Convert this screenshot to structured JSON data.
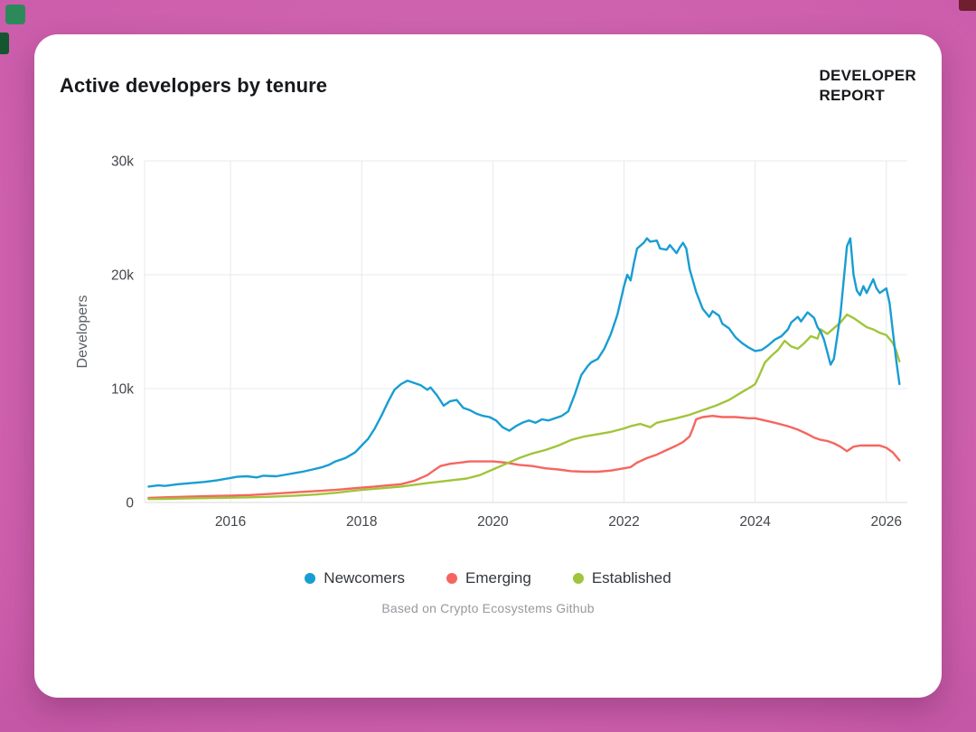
{
  "page": {
    "title": "Active developers by tenure",
    "brand": {
      "line1": "DEVELOPER",
      "line2": "REPORT"
    },
    "caption": "Based on Crypto Ecosystems Github",
    "background_color": "#cc5dac",
    "card_color": "#ffffff"
  },
  "chart_data": {
    "type": "line",
    "title": "Active developers by tenure",
    "xlabel": "",
    "ylabel": "Developers",
    "xlim": [
      2014.69,
      2026.32
    ],
    "ylim": [
      0,
      30000
    ],
    "x_ticks": [
      2016,
      2018,
      2020,
      2022,
      2024,
      2026
    ],
    "y_ticks": [
      0,
      10000,
      20000,
      30000
    ],
    "y_tick_labels": [
      "0",
      "10k",
      "20k",
      "30k"
    ],
    "grid": true,
    "legend_position": "bottom",
    "caption": "Based on Crypto Ecosystems Github",
    "series": [
      {
        "name": "Newcomers",
        "color": "#189dd3",
        "points": [
          [
            2014.75,
            1400
          ],
          [
            2014.9,
            1500
          ],
          [
            2015.0,
            1450
          ],
          [
            2015.2,
            1600
          ],
          [
            2015.4,
            1700
          ],
          [
            2015.6,
            1800
          ],
          [
            2015.8,
            1950
          ],
          [
            2016.0,
            2150
          ],
          [
            2016.1,
            2250
          ],
          [
            2016.25,
            2300
          ],
          [
            2016.4,
            2200
          ],
          [
            2016.5,
            2350
          ],
          [
            2016.7,
            2300
          ],
          [
            2016.9,
            2500
          ],
          [
            2017.0,
            2600
          ],
          [
            2017.1,
            2700
          ],
          [
            2017.25,
            2900
          ],
          [
            2017.4,
            3100
          ],
          [
            2017.5,
            3300
          ],
          [
            2017.6,
            3600
          ],
          [
            2017.75,
            3900
          ],
          [
            2017.9,
            4400
          ],
          [
            2018.0,
            5000
          ],
          [
            2018.1,
            5600
          ],
          [
            2018.2,
            6500
          ],
          [
            2018.3,
            7600
          ],
          [
            2018.4,
            8800
          ],
          [
            2018.5,
            9900
          ],
          [
            2018.6,
            10400
          ],
          [
            2018.7,
            10700
          ],
          [
            2018.8,
            10500
          ],
          [
            2018.9,
            10300
          ],
          [
            2019.0,
            9900
          ],
          [
            2019.05,
            10100
          ],
          [
            2019.15,
            9400
          ],
          [
            2019.25,
            8500
          ],
          [
            2019.35,
            8900
          ],
          [
            2019.45,
            9000
          ],
          [
            2019.55,
            8300
          ],
          [
            2019.65,
            8100
          ],
          [
            2019.75,
            7800
          ],
          [
            2019.85,
            7600
          ],
          [
            2019.95,
            7500
          ],
          [
            2020.05,
            7200
          ],
          [
            2020.15,
            6600
          ],
          [
            2020.25,
            6300
          ],
          [
            2020.35,
            6700
          ],
          [
            2020.45,
            7000
          ],
          [
            2020.55,
            7200
          ],
          [
            2020.65,
            7000
          ],
          [
            2020.75,
            7300
          ],
          [
            2020.85,
            7200
          ],
          [
            2020.95,
            7400
          ],
          [
            2021.05,
            7600
          ],
          [
            2021.15,
            8000
          ],
          [
            2021.25,
            9500
          ],
          [
            2021.35,
            11200
          ],
          [
            2021.45,
            12000
          ],
          [
            2021.5,
            12300
          ],
          [
            2021.6,
            12600
          ],
          [
            2021.7,
            13500
          ],
          [
            2021.8,
            14800
          ],
          [
            2021.9,
            16500
          ],
          [
            2022.0,
            19000
          ],
          [
            2022.05,
            20000
          ],
          [
            2022.1,
            19500
          ],
          [
            2022.15,
            21000
          ],
          [
            2022.2,
            22300
          ],
          [
            2022.3,
            22800
          ],
          [
            2022.35,
            23200
          ],
          [
            2022.4,
            22900
          ],
          [
            2022.5,
            23000
          ],
          [
            2022.55,
            22300
          ],
          [
            2022.65,
            22200
          ],
          [
            2022.7,
            22600
          ],
          [
            2022.8,
            21900
          ],
          [
            2022.85,
            22400
          ],
          [
            2022.9,
            22800
          ],
          [
            2022.95,
            22300
          ],
          [
            2023.0,
            20500
          ],
          [
            2023.05,
            19500
          ],
          [
            2023.1,
            18500
          ],
          [
            2023.2,
            17000
          ],
          [
            2023.3,
            16300
          ],
          [
            2023.35,
            16800
          ],
          [
            2023.45,
            16400
          ],
          [
            2023.5,
            15700
          ],
          [
            2023.6,
            15300
          ],
          [
            2023.7,
            14500
          ],
          [
            2023.8,
            14000
          ],
          [
            2023.9,
            13600
          ],
          [
            2024.0,
            13300
          ],
          [
            2024.1,
            13400
          ],
          [
            2024.2,
            13800
          ],
          [
            2024.3,
            14300
          ],
          [
            2024.4,
            14600
          ],
          [
            2024.5,
            15200
          ],
          [
            2024.55,
            15800
          ],
          [
            2024.65,
            16300
          ],
          [
            2024.7,
            15900
          ],
          [
            2024.8,
            16700
          ],
          [
            2024.9,
            16200
          ],
          [
            2024.95,
            15400
          ],
          [
            2025.0,
            15000
          ],
          [
            2025.05,
            14300
          ],
          [
            2025.1,
            13200
          ],
          [
            2025.15,
            12100
          ],
          [
            2025.2,
            12600
          ],
          [
            2025.25,
            14500
          ],
          [
            2025.3,
            16500
          ],
          [
            2025.35,
            19500
          ],
          [
            2025.4,
            22500
          ],
          [
            2025.45,
            23200
          ],
          [
            2025.5,
            20000
          ],
          [
            2025.55,
            18600
          ],
          [
            2025.6,
            18200
          ],
          [
            2025.65,
            19000
          ],
          [
            2025.7,
            18400
          ],
          [
            2025.8,
            19600
          ],
          [
            2025.85,
            18800
          ],
          [
            2025.9,
            18400
          ],
          [
            2026.0,
            18800
          ],
          [
            2026.05,
            17500
          ],
          [
            2026.1,
            15000
          ],
          [
            2026.15,
            12500
          ],
          [
            2026.2,
            10400
          ]
        ]
      },
      {
        "name": "Emerging",
        "color": "#f5665e",
        "points": [
          [
            2014.75,
            400
          ],
          [
            2015.0,
            450
          ],
          [
            2015.3,
            500
          ],
          [
            2015.6,
            550
          ],
          [
            2016.0,
            600
          ],
          [
            2016.3,
            650
          ],
          [
            2016.6,
            750
          ],
          [
            2017.0,
            900
          ],
          [
            2017.3,
            1000
          ],
          [
            2017.6,
            1100
          ],
          [
            2018.0,
            1300
          ],
          [
            2018.2,
            1400
          ],
          [
            2018.4,
            1500
          ],
          [
            2018.6,
            1600
          ],
          [
            2018.8,
            1900
          ],
          [
            2019.0,
            2400
          ],
          [
            2019.1,
            2800
          ],
          [
            2019.2,
            3200
          ],
          [
            2019.35,
            3400
          ],
          [
            2019.5,
            3500
          ],
          [
            2019.65,
            3600
          ],
          [
            2019.8,
            3600
          ],
          [
            2020.0,
            3600
          ],
          [
            2020.2,
            3500
          ],
          [
            2020.4,
            3300
          ],
          [
            2020.6,
            3200
          ],
          [
            2020.8,
            3000
          ],
          [
            2021.0,
            2900
          ],
          [
            2021.2,
            2750
          ],
          [
            2021.4,
            2700
          ],
          [
            2021.6,
            2700
          ],
          [
            2021.8,
            2800
          ],
          [
            2022.0,
            3000
          ],
          [
            2022.1,
            3100
          ],
          [
            2022.2,
            3500
          ],
          [
            2022.35,
            3900
          ],
          [
            2022.5,
            4200
          ],
          [
            2022.65,
            4600
          ],
          [
            2022.8,
            5000
          ],
          [
            2022.9,
            5300
          ],
          [
            2023.0,
            5800
          ],
          [
            2023.05,
            6500
          ],
          [
            2023.1,
            7300
          ],
          [
            2023.2,
            7500
          ],
          [
            2023.35,
            7600
          ],
          [
            2023.5,
            7500
          ],
          [
            2023.7,
            7500
          ],
          [
            2023.9,
            7400
          ],
          [
            2024.0,
            7400
          ],
          [
            2024.15,
            7200
          ],
          [
            2024.3,
            7000
          ],
          [
            2024.5,
            6700
          ],
          [
            2024.65,
            6400
          ],
          [
            2024.8,
            6000
          ],
          [
            2024.9,
            5700
          ],
          [
            2025.0,
            5500
          ],
          [
            2025.1,
            5400
          ],
          [
            2025.2,
            5200
          ],
          [
            2025.3,
            4900
          ],
          [
            2025.4,
            4500
          ],
          [
            2025.5,
            4900
          ],
          [
            2025.6,
            5000
          ],
          [
            2025.75,
            5000
          ],
          [
            2025.9,
            5000
          ],
          [
            2026.0,
            4800
          ],
          [
            2026.1,
            4400
          ],
          [
            2026.2,
            3700
          ]
        ]
      },
      {
        "name": "Established",
        "color": "#a1c53a",
        "points": [
          [
            2014.75,
            300
          ],
          [
            2015.0,
            320
          ],
          [
            2015.3,
            350
          ],
          [
            2015.6,
            380
          ],
          [
            2016.0,
            420
          ],
          [
            2016.3,
            450
          ],
          [
            2016.6,
            500
          ],
          [
            2017.0,
            600
          ],
          [
            2017.3,
            700
          ],
          [
            2017.6,
            850
          ],
          [
            2018.0,
            1100
          ],
          [
            2018.3,
            1250
          ],
          [
            2018.6,
            1400
          ],
          [
            2019.0,
            1700
          ],
          [
            2019.3,
            1900
          ],
          [
            2019.6,
            2100
          ],
          [
            2019.8,
            2400
          ],
          [
            2020.0,
            2900
          ],
          [
            2020.2,
            3400
          ],
          [
            2020.4,
            3900
          ],
          [
            2020.6,
            4300
          ],
          [
            2020.8,
            4600
          ],
          [
            2021.0,
            5000
          ],
          [
            2021.2,
            5500
          ],
          [
            2021.4,
            5800
          ],
          [
            2021.6,
            6000
          ],
          [
            2021.8,
            6200
          ],
          [
            2022.0,
            6500
          ],
          [
            2022.1,
            6700
          ],
          [
            2022.25,
            6900
          ],
          [
            2022.4,
            6600
          ],
          [
            2022.5,
            7000
          ],
          [
            2022.65,
            7200
          ],
          [
            2022.8,
            7400
          ],
          [
            2023.0,
            7700
          ],
          [
            2023.2,
            8100
          ],
          [
            2023.4,
            8500
          ],
          [
            2023.6,
            9000
          ],
          [
            2023.8,
            9700
          ],
          [
            2023.95,
            10200
          ],
          [
            2024.0,
            10400
          ],
          [
            2024.05,
            11000
          ],
          [
            2024.15,
            12300
          ],
          [
            2024.25,
            12900
          ],
          [
            2024.35,
            13400
          ],
          [
            2024.45,
            14200
          ],
          [
            2024.55,
            13700
          ],
          [
            2024.65,
            13500
          ],
          [
            2024.75,
            14000
          ],
          [
            2024.85,
            14600
          ],
          [
            2024.95,
            14400
          ],
          [
            2025.0,
            15200
          ],
          [
            2025.1,
            14800
          ],
          [
            2025.2,
            15300
          ],
          [
            2025.3,
            15800
          ],
          [
            2025.4,
            16500
          ],
          [
            2025.5,
            16200
          ],
          [
            2025.6,
            15800
          ],
          [
            2025.7,
            15400
          ],
          [
            2025.8,
            15200
          ],
          [
            2025.9,
            14900
          ],
          [
            2026.0,
            14700
          ],
          [
            2026.1,
            14000
          ],
          [
            2026.15,
            13300
          ],
          [
            2026.2,
            12400
          ]
        ]
      }
    ]
  }
}
